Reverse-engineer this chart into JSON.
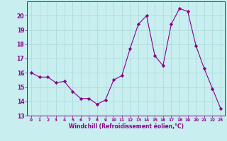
{
  "x": [
    0,
    1,
    2,
    3,
    4,
    5,
    6,
    7,
    8,
    9,
    10,
    11,
    12,
    13,
    14,
    15,
    16,
    17,
    18,
    19,
    20,
    21,
    22,
    23
  ],
  "y": [
    16.0,
    15.7,
    15.7,
    15.3,
    15.4,
    14.7,
    14.2,
    14.2,
    13.8,
    14.1,
    15.5,
    15.8,
    17.7,
    19.4,
    20.0,
    17.2,
    16.5,
    19.4,
    20.5,
    20.3,
    17.9,
    16.3,
    14.9,
    13.5
  ],
  "line_color": "#880088",
  "marker": "D",
  "marker_size": 2.2,
  "bg_color": "#c8eef0",
  "grid_color": "#a8d8da",
  "xlabel": "Windchill (Refroidissement éolien,°C)",
  "xlabel_color": "#880088",
  "tick_color": "#880088",
  "ylim": [
    13,
    21
  ],
  "xlim": [
    -0.5,
    23.5
  ],
  "yticks": [
    13,
    14,
    15,
    16,
    17,
    18,
    19,
    20
  ],
  "xticks": [
    0,
    1,
    2,
    3,
    4,
    5,
    6,
    7,
    8,
    9,
    10,
    11,
    12,
    13,
    14,
    15,
    16,
    17,
    18,
    19,
    20,
    21,
    22,
    23
  ]
}
